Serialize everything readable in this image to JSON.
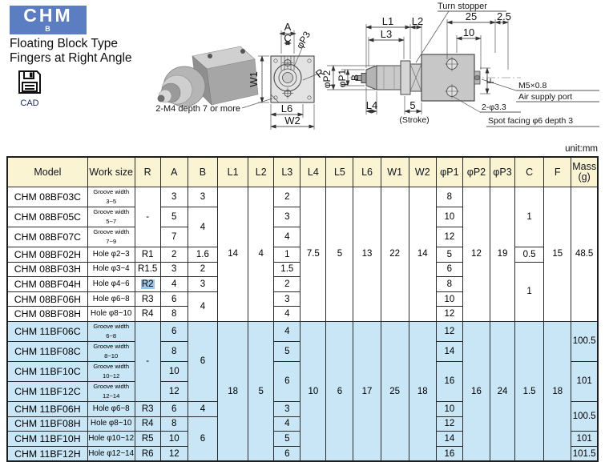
{
  "logo": {
    "text": "CHM",
    "sub": "B"
  },
  "title": {
    "line1": "Floating Block Type",
    "line2": "Fingers at Right Angle"
  },
  "cad": {
    "label": "CAD"
  },
  "unit_label": "unit:mm",
  "drawing": {
    "front": {
      "a": "A",
      "c": "C",
      "p3": "φP3",
      "w1": "W1",
      "l6": "L6",
      "w2": "W2",
      "r": "R",
      "m4_note": "2-M4 depth 7 or more"
    },
    "side": {
      "l1": "L1",
      "l2": "L2",
      "l3": "L3",
      "l4": "L4",
      "turn_stopper": "Turn stopper",
      "d25": "25",
      "d2_5": "2.5",
      "d10": "10",
      "p1": "φP1",
      "p2": "φP2",
      "b": "B",
      "stroke_val": "5",
      "stroke": "(Stroke)",
      "f": "F",
      "m5": "M5×0.8",
      "air_port": "Air supply port",
      "drill": "2-φ3.3",
      "spot": "Spot facing φ6 depth 3"
    }
  },
  "table": {
    "columns": [
      "Model",
      "Work size",
      "R",
      "A",
      "B",
      "L1",
      "L2",
      "L3",
      "L4",
      "L5",
      "L6",
      "W1",
      "W2",
      "φP1",
      "φP2",
      "φP3",
      "C",
      "F",
      "Mass\n(g)"
    ],
    "rows": [
      {
        "g": "08",
        "cells": [
          [
            "CHM 08BF03C"
          ],
          [
            "Groove width 3~5",
            1,
            "sm"
          ],
          [
            "-",
            3
          ],
          [
            "3"
          ],
          [
            "3"
          ],
          [
            "14",
            8
          ],
          [
            "4",
            8
          ],
          [
            "2"
          ],
          [
            "7.5",
            8
          ],
          [
            "5",
            8
          ],
          [
            "13",
            8
          ],
          [
            "22",
            8
          ],
          [
            "14",
            8
          ],
          [
            "8"
          ],
          [
            "12",
            8
          ],
          [
            "19",
            8
          ],
          [
            "1",
            3
          ],
          [
            "15",
            8
          ],
          [
            "48.5",
            8
          ]
        ]
      },
      {
        "g": "08",
        "cells": [
          [
            "CHM 08BF05C"
          ],
          [
            "Groove width 5~7",
            1,
            "sm"
          ],
          [
            "5"
          ],
          [
            "4",
            2
          ],
          [
            "3"
          ],
          [
            "10"
          ]
        ]
      },
      {
        "g": "08",
        "cells": [
          [
            "CHM 08BF07C"
          ],
          [
            "Groove width 7~9",
            1,
            "sm"
          ],
          [
            "7"
          ],
          [
            "4"
          ],
          [
            "12"
          ]
        ]
      },
      {
        "g": "08",
        "cells": [
          [
            "CHM 08BF02H"
          ],
          [
            "Hole φ2~3"
          ],
          [
            "R1"
          ],
          [
            "2"
          ],
          [
            "1.6"
          ],
          [
            "1"
          ],
          [
            "5"
          ],
          [
            "0.5",
            1
          ]
        ]
      },
      {
        "g": "08",
        "cells": [
          [
            "CHM 08BF03H"
          ],
          [
            "Hole φ3~4"
          ],
          [
            "R1.5"
          ],
          [
            "3"
          ],
          [
            "2"
          ],
          [
            "1.5"
          ],
          [
            "6"
          ],
          [
            "1",
            4
          ]
        ]
      },
      {
        "g": "08",
        "cells": [
          [
            "CHM 08BF04H"
          ],
          [
            "Hole φ4~6"
          ],
          [
            "R2",
            1,
            "hl"
          ],
          [
            "4"
          ],
          [
            "3"
          ],
          [
            "2"
          ],
          [
            "8"
          ]
        ]
      },
      {
        "g": "08",
        "cells": [
          [
            "CHM 08BF06H"
          ],
          [
            "Hole φ6~8"
          ],
          [
            "R3"
          ],
          [
            "6"
          ],
          [
            "4",
            2
          ],
          [
            "3"
          ],
          [
            "10"
          ]
        ]
      },
      {
        "g": "08",
        "cells": [
          [
            "CHM 08BF08H"
          ],
          [
            "Hole φ8~10"
          ],
          [
            "R4"
          ],
          [
            "8"
          ],
          [
            "4"
          ],
          [
            "12"
          ]
        ]
      },
      {
        "g": "11",
        "cells": [
          [
            "CHM 11BF06C"
          ],
          [
            "Groove width 6~8",
            1,
            "sm"
          ],
          [
            "-",
            4
          ],
          [
            "6"
          ],
          [
            "6",
            4
          ],
          [
            "18",
            8
          ],
          [
            "5",
            8
          ],
          [
            "4"
          ],
          [
            "10",
            8
          ],
          [
            "6",
            8
          ],
          [
            "17",
            8
          ],
          [
            "25",
            8
          ],
          [
            "18",
            8
          ],
          [
            "12"
          ],
          [
            "16",
            8
          ],
          [
            "24",
            8
          ],
          [
            "1.5",
            8
          ],
          [
            "18",
            8
          ],
          [
            "100.5",
            2
          ]
        ]
      },
      {
        "g": "11",
        "cells": [
          [
            "CHM 11BF08C"
          ],
          [
            "Groove width 8~10",
            1,
            "sm"
          ],
          [
            "8"
          ],
          [
            "5"
          ],
          [
            "14"
          ]
        ]
      },
      {
        "g": "11",
        "cells": [
          [
            "CHM 11BF10C"
          ],
          [
            "Groove width 10~12",
            1,
            "sm"
          ],
          [
            "10"
          ],
          [
            "6",
            2
          ],
          [
            "16",
            2
          ],
          [
            "101",
            2
          ]
        ]
      },
      {
        "g": "11",
        "cells": [
          [
            "CHM 11BF12C"
          ],
          [
            "Groove width 12~14",
            1,
            "sm"
          ],
          [
            "12"
          ]
        ]
      },
      {
        "g": "11",
        "cells": [
          [
            "CHM 11BF06H"
          ],
          [
            "Hole φ6~8"
          ],
          [
            "R3"
          ],
          [
            "6"
          ],
          [
            "4"
          ],
          [
            "3"
          ],
          [
            "10"
          ],
          [
            "100.5",
            2
          ]
        ]
      },
      {
        "g": "11",
        "cells": [
          [
            "CHM 11BF08H"
          ],
          [
            "Hole φ8~10"
          ],
          [
            "R4"
          ],
          [
            "8"
          ],
          [
            "6",
            3
          ],
          [
            "4"
          ],
          [
            "12"
          ]
        ]
      },
      {
        "g": "11",
        "cells": [
          [
            "CHM 11BF10H"
          ],
          [
            "Hole φ10~12"
          ],
          [
            "R5"
          ],
          [
            "10"
          ],
          [
            "5"
          ],
          [
            "14"
          ],
          [
            "101",
            1
          ]
        ]
      },
      {
        "g": "11",
        "cells": [
          [
            "CHM 11BF12H"
          ],
          [
            "Hole φ12~14"
          ],
          [
            "R6"
          ],
          [
            "12"
          ],
          [
            "6"
          ],
          [
            "16"
          ],
          [
            "101.5",
            1
          ]
        ]
      }
    ]
  }
}
